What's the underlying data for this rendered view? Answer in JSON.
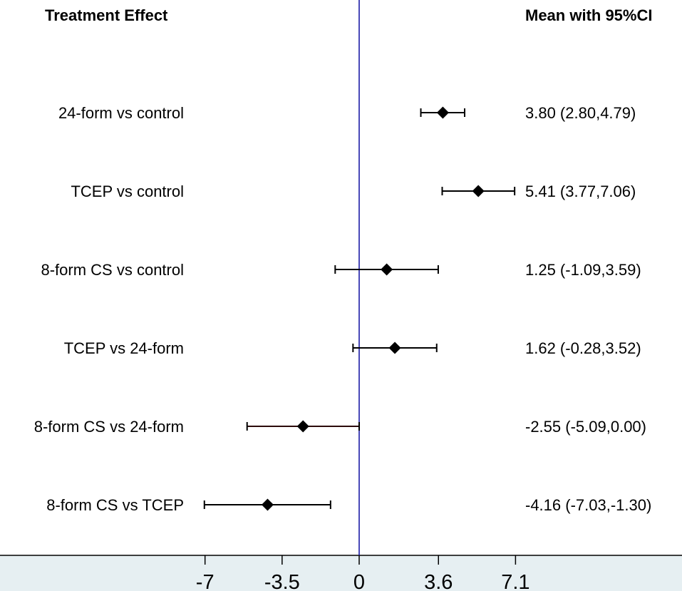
{
  "chart_data": {
    "type": "forest",
    "header_left": "Treatment Effect",
    "header_right": "Mean with 95%CI",
    "rows": [
      {
        "label": "24-form vs control",
        "mean": 3.8,
        "lower": 2.8,
        "upper": 4.79,
        "ci_text": "3.80 (2.80,4.79)"
      },
      {
        "label": "TCEP vs control",
        "mean": 5.41,
        "lower": 3.77,
        "upper": 7.06,
        "ci_text": "5.41 (3.77,7.06)"
      },
      {
        "label": "8-form CS vs control",
        "mean": 1.25,
        "lower": -1.09,
        "upper": 3.59,
        "ci_text": "1.25 (-1.09,3.59)"
      },
      {
        "label": "TCEP vs 24-form",
        "mean": 1.62,
        "lower": -0.28,
        "upper": 3.52,
        "ci_text": "1.62 (-0.28,3.52)"
      },
      {
        "label": "8-form CS vs 24-form",
        "mean": -2.55,
        "lower": -5.09,
        "upper": 0.0,
        "ci_text": "-2.55 (-5.09,0.00)"
      },
      {
        "label": "8-form CS vs TCEP",
        "mean": -4.16,
        "lower": -7.03,
        "upper": -1.3,
        "ci_text": "-4.16 (-7.03,-1.30)"
      }
    ],
    "x_ticks": [
      {
        "value": -7,
        "label": "-7"
      },
      {
        "value": -3.5,
        "label": "-3.5"
      },
      {
        "value": 0,
        "label": "0"
      },
      {
        "value": 3.6,
        "label": "3.6"
      },
      {
        "value": 7.1,
        "label": "7.1"
      }
    ],
    "reference_line": 0,
    "xlim": [
      -7.1,
      7.1
    ],
    "colors": {
      "reference_line": "#1a1aa6",
      "marker": "#000000",
      "axis_band": "#e6eff2",
      "ci_line": "#000000",
      "ci_line_crossing": "#2b0a0a"
    }
  }
}
